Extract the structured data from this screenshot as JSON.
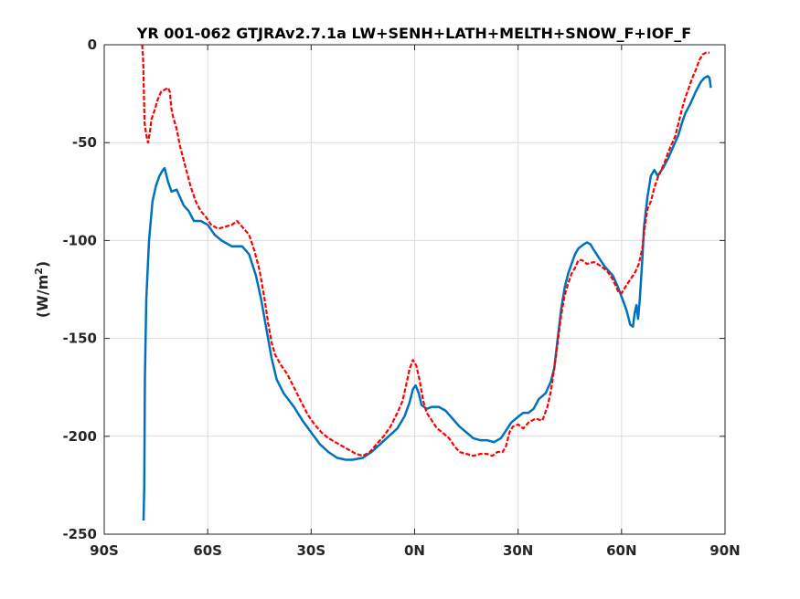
{
  "chart_data": {
    "type": "line",
    "title": "YR 001-062 GTJRAv2.7.1a LW+SENH+LATH+MELTH+SNOW_F+IOF_F",
    "xlabel": "",
    "ylabel": "(W/m",
    "ylabel_sup": "2",
    "ylabel_close": ")",
    "xlim": [
      -90,
      90
    ],
    "ylim": [
      -250,
      0
    ],
    "xticks": [
      -90,
      -60,
      -30,
      0,
      30,
      60,
      90
    ],
    "xtick_labels": [
      "90S",
      "60S",
      "30S",
      "0N",
      "30N",
      "60N",
      "90N"
    ],
    "yticks": [
      0,
      -50,
      -100,
      -150,
      -200,
      -250
    ],
    "ytick_labels": [
      "0",
      "-50",
      "-100",
      "-150",
      "-200",
      "-250"
    ],
    "grid": true,
    "series": [
      {
        "color": "#0072bd",
        "style": "solid",
        "points": [
          [
            -78.6,
            -243
          ],
          [
            -78.4,
            -225
          ],
          [
            -78.2,
            -170
          ],
          [
            -77.8,
            -130
          ],
          [
            -77.0,
            -100
          ],
          [
            -76.0,
            -80
          ],
          [
            -75.0,
            -72
          ],
          [
            -74.0,
            -67
          ],
          [
            -73.0,
            -64
          ],
          [
            -72.5,
            -63
          ],
          [
            -71.5,
            -70
          ],
          [
            -70.5,
            -75
          ],
          [
            -69.0,
            -74
          ],
          [
            -68.0,
            -78
          ],
          [
            -67.0,
            -82
          ],
          [
            -65.5,
            -85
          ],
          [
            -64.0,
            -90
          ],
          [
            -62.0,
            -90
          ],
          [
            -60.0,
            -92
          ],
          [
            -58.0,
            -97
          ],
          [
            -56.0,
            -100
          ],
          [
            -53.0,
            -103
          ],
          [
            -50.0,
            -103
          ],
          [
            -48.0,
            -107
          ],
          [
            -46.0,
            -118
          ],
          [
            -44.5,
            -130
          ],
          [
            -43.0,
            -145
          ],
          [
            -41.5,
            -160
          ],
          [
            -40.0,
            -171
          ],
          [
            -38.0,
            -178
          ],
          [
            -35.0,
            -185
          ],
          [
            -32.5,
            -192
          ],
          [
            -30.0,
            -198
          ],
          [
            -27.5,
            -204
          ],
          [
            -25.0,
            -208
          ],
          [
            -22.5,
            -211
          ],
          [
            -20.0,
            -212
          ],
          [
            -18.0,
            -212
          ],
          [
            -15.0,
            -211
          ],
          [
            -12.5,
            -208
          ],
          [
            -10.0,
            -204
          ],
          [
            -7.5,
            -200
          ],
          [
            -5.0,
            -196
          ],
          [
            -3.0,
            -190
          ],
          [
            -1.5,
            -183
          ],
          [
            -0.5,
            -176
          ],
          [
            0.3,
            -174
          ],
          [
            1.2,
            -178
          ],
          [
            2.0,
            -184
          ],
          [
            3.5,
            -186
          ],
          [
            5.0,
            -185
          ],
          [
            7.0,
            -185
          ],
          [
            9.0,
            -187
          ],
          [
            11.0,
            -191
          ],
          [
            13.0,
            -195
          ],
          [
            15.0,
            -198
          ],
          [
            17.0,
            -201
          ],
          [
            19.0,
            -202
          ],
          [
            21.0,
            -202
          ],
          [
            23.0,
            -203
          ],
          [
            25.0,
            -201
          ],
          [
            26.5,
            -197
          ],
          [
            28.0,
            -193
          ],
          [
            30.0,
            -190
          ],
          [
            31.5,
            -188
          ],
          [
            33.0,
            -188
          ],
          [
            34.5,
            -186
          ],
          [
            36.0,
            -181
          ],
          [
            38.0,
            -178
          ],
          [
            39.5,
            -172
          ],
          [
            40.5,
            -165
          ],
          [
            41.5,
            -150
          ],
          [
            42.5,
            -135
          ],
          [
            43.5,
            -124
          ],
          [
            44.5,
            -117
          ],
          [
            45.5,
            -112
          ],
          [
            46.5,
            -107
          ],
          [
            47.5,
            -104
          ],
          [
            49.0,
            -102
          ],
          [
            50.0,
            -101
          ],
          [
            51.0,
            -102
          ],
          [
            52.0,
            -105
          ],
          [
            53.5,
            -109
          ],
          [
            55.0,
            -113
          ],
          [
            56.5,
            -116
          ],
          [
            57.5,
            -118
          ],
          [
            59.0,
            -124
          ],
          [
            60.5,
            -131
          ],
          [
            61.5,
            -136
          ],
          [
            62.5,
            -143
          ],
          [
            63.3,
            -144
          ],
          [
            63.8,
            -137
          ],
          [
            64.3,
            -133
          ],
          [
            64.8,
            -140
          ],
          [
            65.3,
            -130
          ],
          [
            66.0,
            -110
          ],
          [
            66.5,
            -93
          ],
          [
            67.5,
            -78
          ],
          [
            68.5,
            -67
          ],
          [
            69.5,
            -64
          ],
          [
            70.5,
            -67
          ],
          [
            72.0,
            -63
          ],
          [
            73.5,
            -58
          ],
          [
            75.0,
            -52
          ],
          [
            76.5,
            -46
          ],
          [
            77.5,
            -40
          ],
          [
            78.5,
            -35
          ],
          [
            80.0,
            -30
          ],
          [
            81.5,
            -24
          ],
          [
            83.0,
            -19
          ],
          [
            84.0,
            -17
          ],
          [
            85.0,
            -16
          ],
          [
            85.5,
            -17
          ],
          [
            85.9,
            -22
          ]
        ]
      },
      {
        "color": "#ff0000",
        "style": "dashed",
        "points": [
          [
            -79.0,
            0
          ],
          [
            -78.7,
            -8
          ],
          [
            -78.3,
            -40
          ],
          [
            -77.7,
            -47
          ],
          [
            -77.3,
            -50
          ],
          [
            -76.8,
            -45
          ],
          [
            -76.3,
            -38
          ],
          [
            -75.5,
            -34
          ],
          [
            -74.5,
            -28
          ],
          [
            -73.5,
            -24
          ],
          [
            -72.5,
            -23
          ],
          [
            -71.5,
            -22
          ],
          [
            -71.0,
            -24
          ],
          [
            -70.5,
            -33
          ],
          [
            -70.0,
            -37
          ],
          [
            -69.0,
            -43
          ],
          [
            -68.0,
            -52
          ],
          [
            -66.5,
            -62
          ],
          [
            -65.0,
            -72
          ],
          [
            -63.5,
            -80
          ],
          [
            -62.0,
            -85
          ],
          [
            -60.5,
            -88
          ],
          [
            -59.0,
            -92
          ],
          [
            -57.0,
            -94
          ],
          [
            -55.0,
            -93
          ],
          [
            -53.0,
            -92
          ],
          [
            -51.5,
            -90
          ],
          [
            -50.0,
            -93
          ],
          [
            -48.0,
            -97
          ],
          [
            -46.5,
            -105
          ],
          [
            -45.0,
            -115
          ],
          [
            -43.5,
            -130
          ],
          [
            -42.5,
            -142
          ],
          [
            -41.5,
            -152
          ],
          [
            -40.5,
            -158
          ],
          [
            -39.0,
            -163
          ],
          [
            -37.0,
            -168
          ],
          [
            -35.0,
            -175
          ],
          [
            -33.0,
            -182
          ],
          [
            -31.0,
            -189
          ],
          [
            -29.0,
            -194
          ],
          [
            -27.0,
            -198
          ],
          [
            -25.0,
            -201
          ],
          [
            -23.0,
            -203
          ],
          [
            -21.0,
            -205
          ],
          [
            -19.0,
            -207
          ],
          [
            -17.0,
            -209
          ],
          [
            -15.0,
            -210
          ],
          [
            -13.0,
            -208
          ],
          [
            -11.0,
            -204
          ],
          [
            -9.0,
            -200
          ],
          [
            -7.0,
            -195
          ],
          [
            -5.0,
            -188
          ],
          [
            -3.5,
            -182
          ],
          [
            -2.5,
            -174
          ],
          [
            -1.5,
            -166
          ],
          [
            -0.5,
            -161
          ],
          [
            0.5,
            -164
          ],
          [
            1.5,
            -172
          ],
          [
            2.5,
            -182
          ],
          [
            3.5,
            -188
          ],
          [
            5.0,
            -192
          ],
          [
            6.5,
            -196
          ],
          [
            8.0,
            -198
          ],
          [
            10.0,
            -201
          ],
          [
            11.5,
            -205
          ],
          [
            13.0,
            -208
          ],
          [
            15.0,
            -209
          ],
          [
            17.0,
            -210
          ],
          [
            19.0,
            -209
          ],
          [
            21.0,
            -209
          ],
          [
            22.5,
            -210
          ],
          [
            24.0,
            -208
          ],
          [
            25.5,
            -208
          ],
          [
            26.5,
            -205
          ],
          [
            27.5,
            -198
          ],
          [
            28.5,
            -195
          ],
          [
            30.0,
            -194
          ],
          [
            31.5,
            -196
          ],
          [
            33.0,
            -193
          ],
          [
            35.0,
            -191
          ],
          [
            37.0,
            -192
          ],
          [
            38.5,
            -185
          ],
          [
            39.5,
            -177
          ],
          [
            40.5,
            -165
          ],
          [
            41.5,
            -152
          ],
          [
            42.5,
            -138
          ],
          [
            43.5,
            -128
          ],
          [
            44.5,
            -122
          ],
          [
            45.5,
            -117
          ],
          [
            46.5,
            -114
          ],
          [
            47.5,
            -110
          ],
          [
            48.5,
            -110
          ],
          [
            50.0,
            -112
          ],
          [
            52.0,
            -111
          ],
          [
            54.0,
            -113
          ],
          [
            56.0,
            -116
          ],
          [
            57.5,
            -120
          ],
          [
            59.0,
            -126
          ],
          [
            60.0,
            -127
          ],
          [
            61.0,
            -124
          ],
          [
            62.5,
            -120
          ],
          [
            64.0,
            -116
          ],
          [
            65.0,
            -112
          ],
          [
            66.0,
            -104
          ],
          [
            66.8,
            -92
          ],
          [
            67.5,
            -84
          ],
          [
            68.5,
            -80
          ],
          [
            69.5,
            -73
          ],
          [
            70.5,
            -68
          ],
          [
            71.5,
            -64
          ],
          [
            72.5,
            -60
          ],
          [
            73.5,
            -55
          ],
          [
            74.5,
            -51
          ],
          [
            75.5,
            -47
          ],
          [
            76.5,
            -40
          ],
          [
            77.5,
            -33
          ],
          [
            78.5,
            -27
          ],
          [
            79.5,
            -22
          ],
          [
            80.5,
            -17
          ],
          [
            81.5,
            -13
          ],
          [
            82.5,
            -8
          ],
          [
            83.5,
            -5
          ],
          [
            84.5,
            -4
          ],
          [
            85.5,
            -4
          ]
        ]
      }
    ]
  }
}
